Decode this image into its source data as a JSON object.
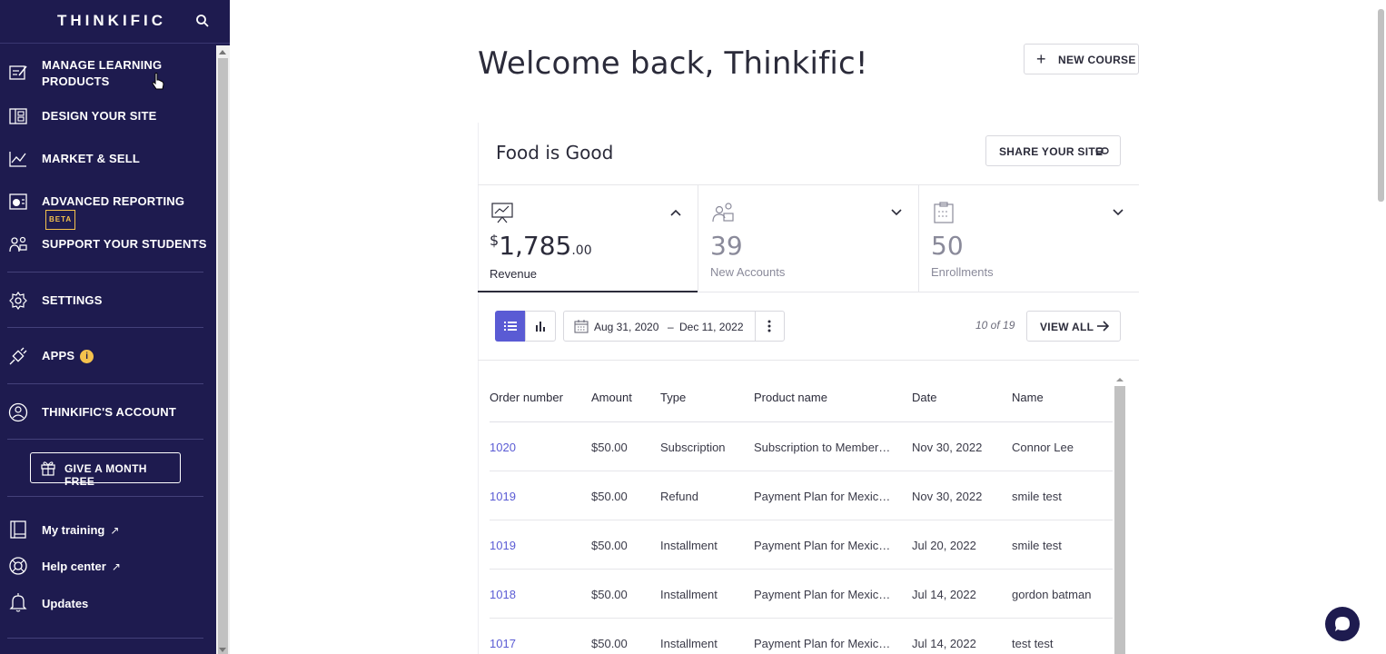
{
  "sidebar": {
    "logo": "THINKIFIC",
    "nav": [
      {
        "label": "MANAGE LEARNING",
        "label2": "PRODUCTS",
        "icon": "edit-icon"
      },
      {
        "label": "DESIGN YOUR SITE",
        "icon": "layout-icon"
      },
      {
        "label": "MARKET & SELL",
        "icon": "chart-line-icon"
      },
      {
        "label": "ADVANCED REPORTING",
        "badge": "BETA",
        "icon": "report-icon"
      },
      {
        "label": "SUPPORT YOUR STUDENTS",
        "icon": "students-icon"
      },
      {
        "label": "SETTINGS",
        "icon": "gear-icon"
      },
      {
        "label": "APPS",
        "badge": "i",
        "icon": "plug-icon"
      },
      {
        "label": "THINKIFIC'S ACCOUNT",
        "icon": "account-icon"
      }
    ],
    "give_button": "GIVE A MONTH FREE",
    "links": [
      {
        "label": "My training",
        "arrow": "↗"
      },
      {
        "label": "Help center",
        "arrow": "↗"
      },
      {
        "label": "Updates"
      }
    ]
  },
  "main": {
    "welcome": "Welcome back, Thinkific!",
    "new_course": "NEW COURSE",
    "new_course_plus": "+",
    "site_name": "Food is Good",
    "share_button": "SHARE YOUR SITE",
    "stats": {
      "revenue": {
        "currency": "$",
        "whole": "1,785",
        "cents": ".00",
        "caption": "Revenue"
      },
      "accounts": {
        "value": "39",
        "caption": "New Accounts"
      },
      "enrollments": {
        "value": "50",
        "caption": "Enrollments"
      }
    },
    "date_range": {
      "from": "Aug 31, 2020",
      "dash": "–",
      "to": "Dec 11, 2022"
    },
    "count": "10 of 19",
    "view_all": "VIEW ALL",
    "table": {
      "headers": [
        "Order number",
        "Amount",
        "Type",
        "Product name",
        "Date",
        "Name"
      ],
      "rows": [
        [
          "1020",
          "$50.00",
          "Subscription",
          "Subscription to Member…",
          "Nov 30, 2022",
          "Connor Lee"
        ],
        [
          "1019",
          "$50.00",
          "Refund",
          "Payment Plan for Mexic…",
          "Nov 30, 2022",
          "smile test"
        ],
        [
          "1019",
          "$50.00",
          "Installment",
          "Payment Plan for Mexic…",
          "Jul 20, 2022",
          "smile test"
        ],
        [
          "1018",
          "$50.00",
          "Installment",
          "Payment Plan for Mexic…",
          "Jul 14, 2022",
          "gordon batman"
        ],
        [
          "1017",
          "$50.00",
          "Installment",
          "Payment Plan for Mexic…",
          "Jul 14, 2022",
          "test test"
        ]
      ]
    }
  },
  "colors": {
    "sidebar": "#1e1b4f",
    "accent": "#5a5bd4",
    "badge": "#f4c24d"
  }
}
